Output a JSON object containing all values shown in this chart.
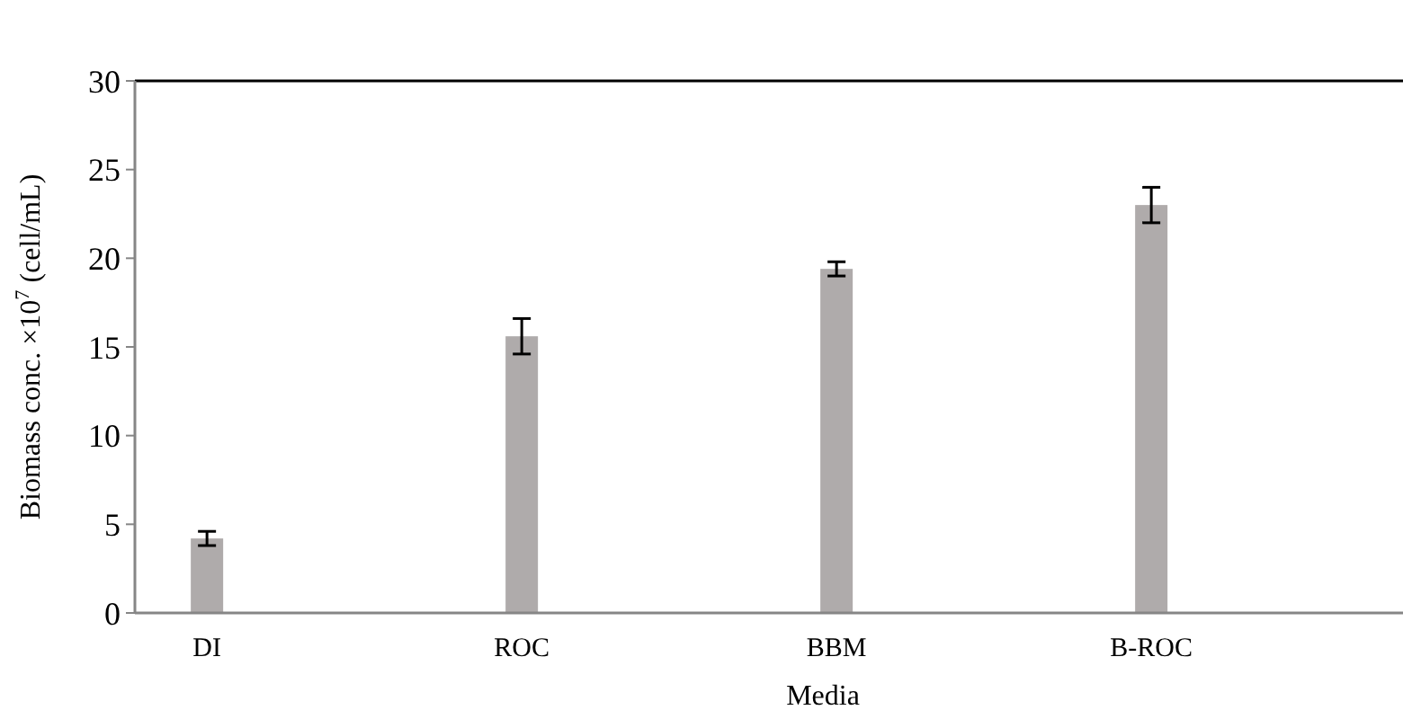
{
  "chart_data": {
    "type": "bar",
    "xlabel": "Media",
    "ylabel": "Biomass conc. ×10$^{7}$ (cell/mL)",
    "categories": [
      "DI",
      "ROC",
      "BBM",
      "B-ROC"
    ],
    "values": [
      4.2,
      15.6,
      19.4,
      23.0
    ],
    "errors": [
      0.4,
      1.0,
      0.4,
      1.0
    ],
    "color": "#afabab",
    "ylim": [
      0,
      30
    ],
    "yticks": [
      0,
      5,
      10,
      15,
      20,
      25,
      30
    ],
    "grid": false
  }
}
